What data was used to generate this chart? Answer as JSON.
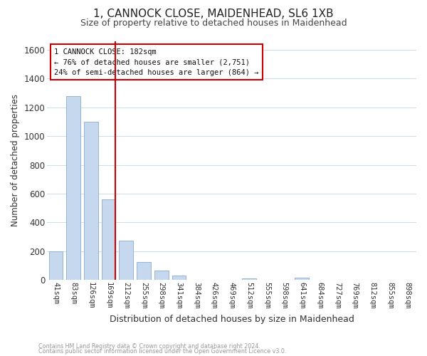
{
  "title": "1, CANNOCK CLOSE, MAIDENHEAD, SL6 1XB",
  "subtitle": "Size of property relative to detached houses in Maidenhead",
  "xlabel": "Distribution of detached houses by size in Maidenhead",
  "ylabel": "Number of detached properties",
  "bar_color": "#c5d8ee",
  "bar_edge_color": "#92b4d4",
  "categories": [
    "41sqm",
    "83sqm",
    "126sqm",
    "169sqm",
    "212sqm",
    "255sqm",
    "298sqm",
    "341sqm",
    "384sqm",
    "426sqm",
    "469sqm",
    "512sqm",
    "555sqm",
    "598sqm",
    "641sqm",
    "684sqm",
    "727sqm",
    "769sqm",
    "812sqm",
    "855sqm",
    "898sqm"
  ],
  "values": [
    200,
    1275,
    1100,
    560,
    275,
    125,
    65,
    30,
    0,
    0,
    0,
    10,
    0,
    0,
    15,
    0,
    0,
    0,
    0,
    0,
    0
  ],
  "ylim": [
    0,
    1660
  ],
  "vline_color": "#cc0000",
  "annotation_line1": "1 CANNOCK CLOSE: 182sqm",
  "annotation_line2": "← 76% of detached houses are smaller (2,751)",
  "annotation_line3": "24% of semi-detached houses are larger (864) →",
  "annotation_box_edge": "#cc0000",
  "footer1": "Contains HM Land Registry data © Crown copyright and database right 2024.",
  "footer2": "Contains public sector information licensed under the Open Government Licence v3.0.",
  "background_color": "#ffffff",
  "grid_color": "#d0dce8",
  "title_fontsize": 11,
  "subtitle_fontsize": 9
}
